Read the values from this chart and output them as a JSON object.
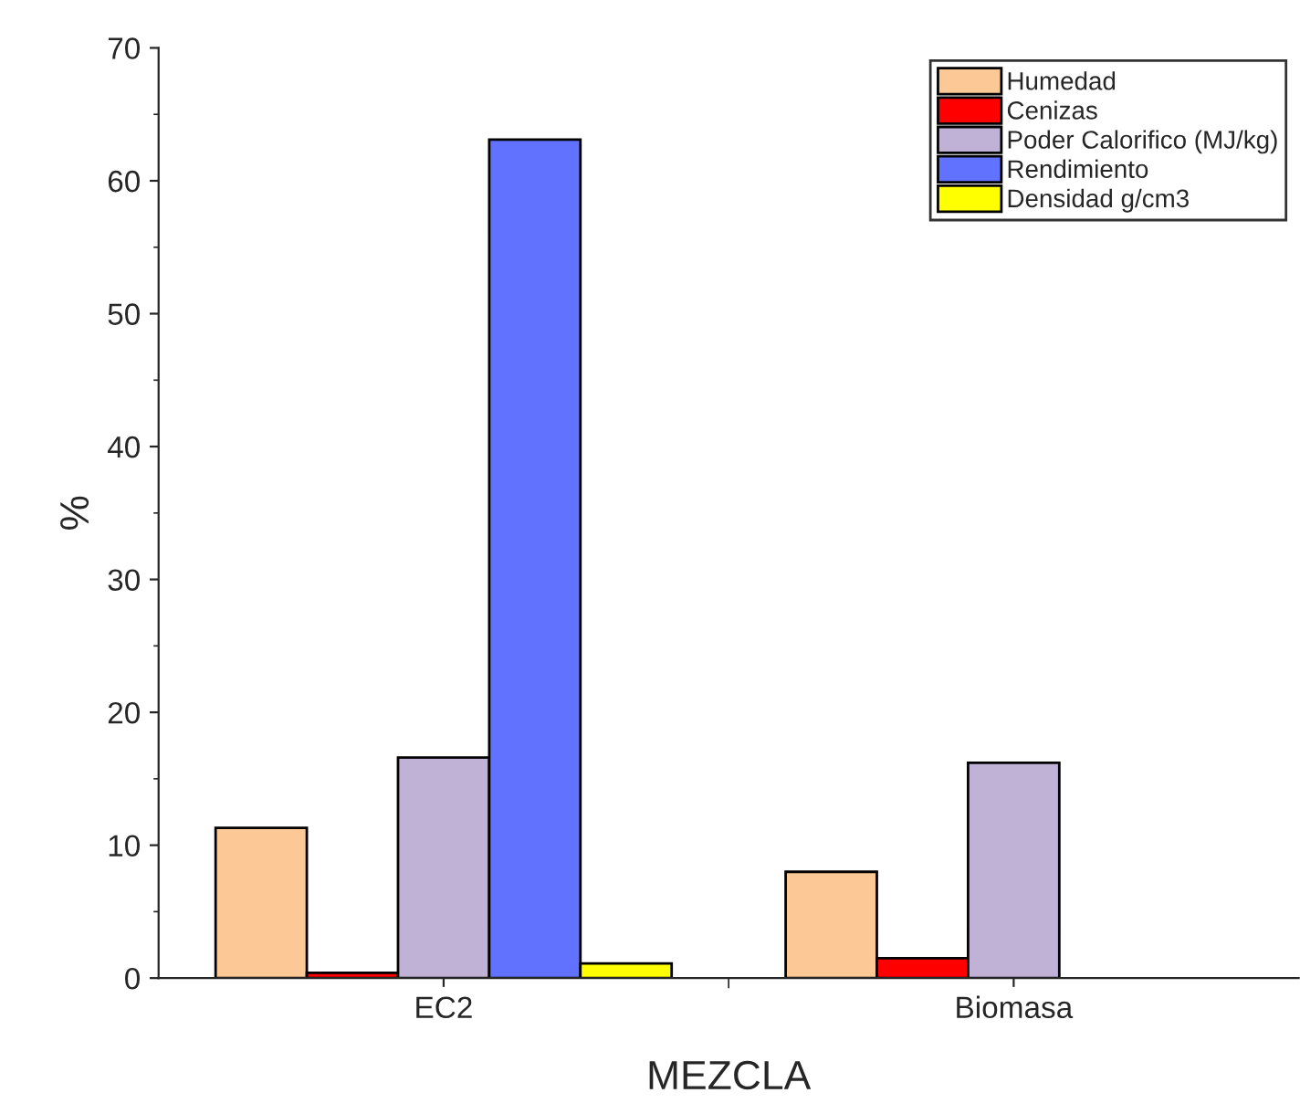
{
  "chart_data": {
    "type": "bar",
    "xlabel": "MEZCLA",
    "ylabel": "%",
    "categories": [
      "EC2",
      "Biomasa"
    ],
    "series": [
      {
        "name": "Humedad",
        "color": "#fcc896",
        "values": [
          11.3,
          8.0
        ]
      },
      {
        "name": "Cenizas",
        "color": "#ff0000",
        "values": [
          0.4,
          1.5
        ]
      },
      {
        "name": "Poder Calorifico (MJ/kg)",
        "color": "#c0b1d6",
        "values": [
          16.6,
          16.2
        ]
      },
      {
        "name": "Rendimiento",
        "color": "#6072ff",
        "values": [
          63.1,
          null
        ]
      },
      {
        "name": "Densidad g/cm3",
        "color": "#ffff00",
        "values": [
          1.1,
          null
        ]
      }
    ],
    "ylim": [
      0,
      70
    ],
    "yticks": [
      0,
      10,
      20,
      30,
      40,
      50,
      60,
      70
    ],
    "grid": false,
    "legend": "top right"
  }
}
